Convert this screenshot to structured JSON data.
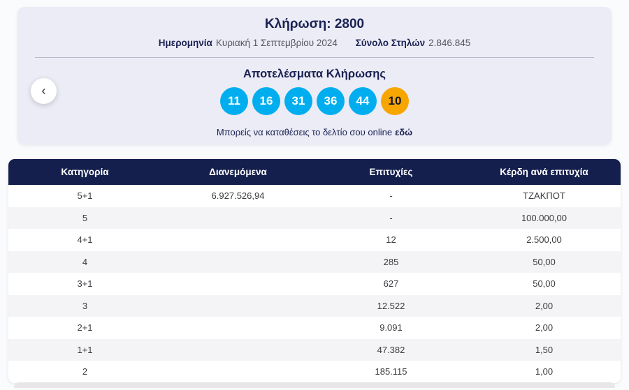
{
  "draw_header": {
    "title": "Κλήρωση: 2800",
    "date_label": "Ημερομηνία",
    "date_value": "Κυριακή 1 Σεπτεμβρίου 2024",
    "columns_label": "Σύνολο Στηλών",
    "columns_value": "2.846.845",
    "results_title": "Αποτελέσματα Κλήρωσης",
    "numbers": [
      "11",
      "16",
      "31",
      "36",
      "44"
    ],
    "joker_number": "10",
    "cta_text": "Μπορείς να καταθέσεις το δελτίο σου online",
    "cta_link_text": "εδώ",
    "colors": {
      "number_ball": "#00aeef",
      "joker_ball": "#f7a600",
      "navy": "#141f4d",
      "card_background": "#ebecf6"
    }
  },
  "navigation": {
    "previous_button_icon": "chevron-left",
    "previous_button_glyph": "‹"
  },
  "table": {
    "headers": [
      "Κατηγορία",
      "Διανεμόμενα",
      "Επιτυχίες",
      "Κέρδη ανά επιτυχία"
    ],
    "rows": [
      [
        "5+1",
        "6.927.526,94",
        "-",
        "ΤΖΑΚΠΟΤ"
      ],
      [
        "5",
        "",
        "-",
        "100.000,00"
      ],
      [
        "4+1",
        "",
        "12",
        "2.500,00"
      ],
      [
        "4",
        "",
        "285",
        "50,00"
      ],
      [
        "3+1",
        "",
        "627",
        "50,00"
      ],
      [
        "3",
        "",
        "12.522",
        "2,00"
      ],
      [
        "2+1",
        "",
        "9.091",
        "2,00"
      ],
      [
        "1+1",
        "",
        "47.382",
        "1,50"
      ],
      [
        "2",
        "",
        "185.115",
        "1,00"
      ]
    ]
  }
}
